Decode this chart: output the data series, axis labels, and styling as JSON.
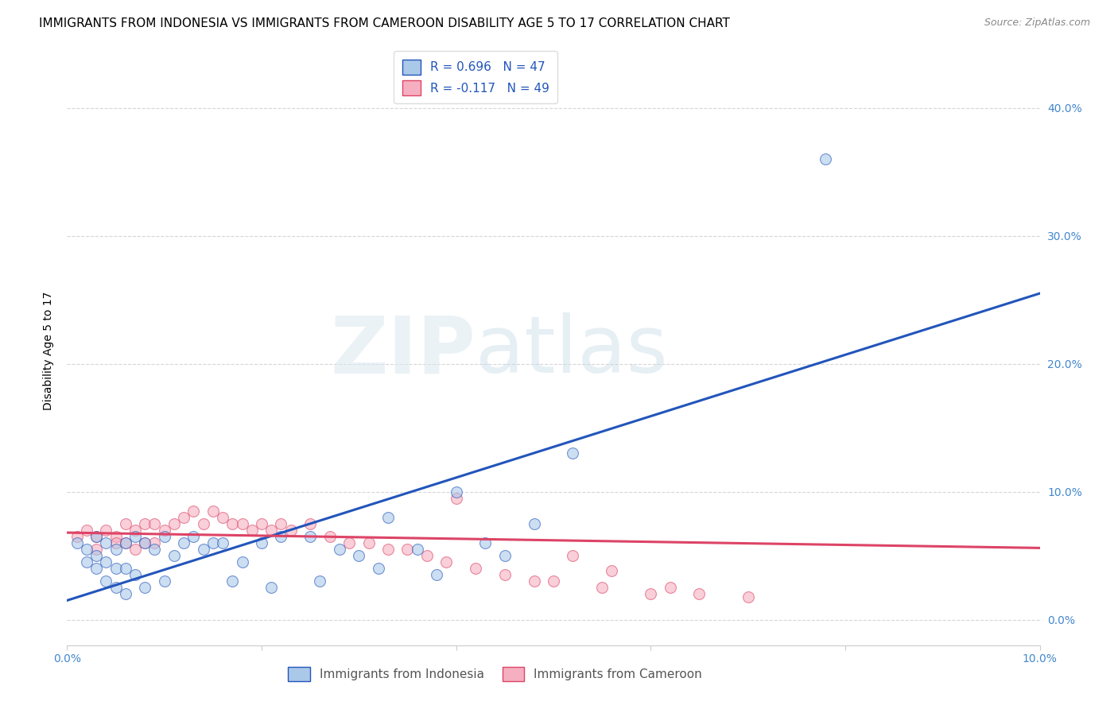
{
  "title": "IMMIGRANTS FROM INDONESIA VS IMMIGRANTS FROM CAMEROON DISABILITY AGE 5 TO 17 CORRELATION CHART",
  "source": "Source: ZipAtlas.com",
  "ylabel": "Disability Age 5 to 17",
  "xlim": [
    0.0,
    0.1
  ],
  "ylim": [
    -0.02,
    0.44
  ],
  "ytick_vals": [
    0.0,
    0.1,
    0.2,
    0.3,
    0.4
  ],
  "xtick_vals": [
    0.0,
    0.02,
    0.04,
    0.06,
    0.08,
    0.1
  ],
  "legend1_label": "R = 0.696   N = 47",
  "legend2_label": "R = -0.117   N = 49",
  "indonesia_color": "#aac8e8",
  "cameroon_color": "#f5afc0",
  "indonesia_line_color": "#2255bb",
  "cameroon_line_color": "#dd4466",
  "legend_text_color": "#2255bb",
  "watermark_zip": "ZIP",
  "watermark_atlas": "atlas",
  "indonesia_scatter_x": [
    0.001,
    0.002,
    0.002,
    0.003,
    0.003,
    0.003,
    0.004,
    0.004,
    0.004,
    0.005,
    0.005,
    0.005,
    0.006,
    0.006,
    0.007,
    0.007,
    0.008,
    0.008,
    0.009,
    0.01,
    0.01,
    0.011,
    0.012,
    0.013,
    0.014,
    0.015,
    0.016,
    0.018,
    0.02,
    0.022,
    0.025,
    0.028,
    0.03,
    0.033,
    0.036,
    0.04,
    0.043,
    0.045,
    0.048,
    0.052,
    0.032,
    0.017,
    0.021,
    0.026,
    0.038,
    0.078,
    0.006
  ],
  "indonesia_scatter_y": [
    0.06,
    0.055,
    0.045,
    0.065,
    0.05,
    0.04,
    0.06,
    0.045,
    0.03,
    0.055,
    0.04,
    0.025,
    0.06,
    0.04,
    0.065,
    0.035,
    0.06,
    0.025,
    0.055,
    0.065,
    0.03,
    0.05,
    0.06,
    0.065,
    0.055,
    0.06,
    0.06,
    0.045,
    0.06,
    0.065,
    0.065,
    0.055,
    0.05,
    0.08,
    0.055,
    0.1,
    0.06,
    0.05,
    0.075,
    0.13,
    0.04,
    0.03,
    0.025,
    0.03,
    0.035,
    0.36,
    0.02
  ],
  "cameroon_scatter_x": [
    0.001,
    0.002,
    0.003,
    0.003,
    0.004,
    0.005,
    0.005,
    0.006,
    0.006,
    0.007,
    0.007,
    0.008,
    0.008,
    0.009,
    0.009,
    0.01,
    0.011,
    0.012,
    0.013,
    0.014,
    0.015,
    0.016,
    0.017,
    0.018,
    0.019,
    0.02,
    0.021,
    0.022,
    0.023,
    0.025,
    0.027,
    0.029,
    0.031,
    0.033,
    0.035,
    0.037,
    0.039,
    0.042,
    0.045,
    0.048,
    0.05,
    0.055,
    0.06,
    0.065,
    0.07,
    0.04,
    0.052,
    0.056,
    0.062
  ],
  "cameroon_scatter_y": [
    0.065,
    0.07,
    0.065,
    0.055,
    0.07,
    0.065,
    0.06,
    0.075,
    0.06,
    0.07,
    0.055,
    0.075,
    0.06,
    0.075,
    0.06,
    0.07,
    0.075,
    0.08,
    0.085,
    0.075,
    0.085,
    0.08,
    0.075,
    0.075,
    0.07,
    0.075,
    0.07,
    0.075,
    0.07,
    0.075,
    0.065,
    0.06,
    0.06,
    0.055,
    0.055,
    0.05,
    0.045,
    0.04,
    0.035,
    0.03,
    0.03,
    0.025,
    0.02,
    0.02,
    0.018,
    0.095,
    0.05,
    0.038,
    0.025
  ],
  "indonesia_line_x": [
    0.0,
    0.1
  ],
  "indonesia_line_y": [
    0.015,
    0.255
  ],
  "cameroon_line_x": [
    0.0,
    0.1
  ],
  "cameroon_line_y": [
    0.068,
    0.056
  ],
  "background_color": "#ffffff",
  "grid_color": "#cccccc",
  "title_fontsize": 11,
  "axis_label_fontsize": 10,
  "tick_fontsize": 10,
  "legend_fontsize": 11,
  "marker_size": 100
}
